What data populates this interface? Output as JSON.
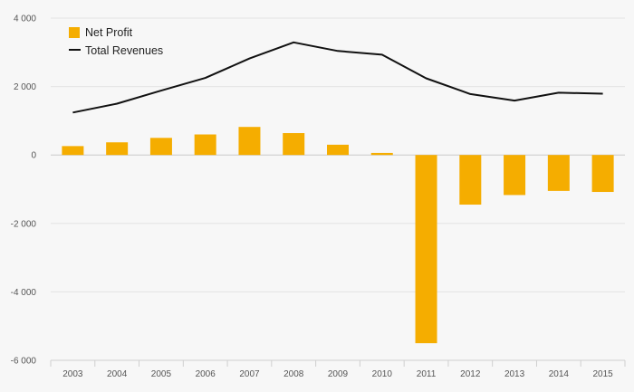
{
  "chart_data": {
    "type": "bar",
    "title": "",
    "xlabel": "",
    "ylabel": "",
    "categories": [
      "2003",
      "2004",
      "2005",
      "2006",
      "2007",
      "2008",
      "2009",
      "2010",
      "2011",
      "2012",
      "2013",
      "2014",
      "2015"
    ],
    "ylim": [
      -6000,
      4000
    ],
    "yticks": [
      4000,
      2000,
      0,
      -2000,
      -4000,
      -6000
    ],
    "ytick_labels": [
      "4 000",
      "2 000",
      "0",
      "-2 000",
      "-4 000",
      "-6 000"
    ],
    "grid": true,
    "legend_position": "top-left",
    "series": [
      {
        "name": "Net Profit",
        "kind": "bar",
        "color": "#f5ad00",
        "values": [
          260,
          370,
          500,
          600,
          820,
          640,
          300,
          60,
          -5500,
          -1450,
          -1170,
          -1050,
          -1080
        ]
      },
      {
        "name": "Total Revenues",
        "kind": "line",
        "color": "#111111",
        "values": [
          1240,
          1500,
          1880,
          2250,
          2820,
          3290,
          3040,
          2930,
          2240,
          1780,
          1590,
          1820,
          1790
        ]
      }
    ]
  }
}
